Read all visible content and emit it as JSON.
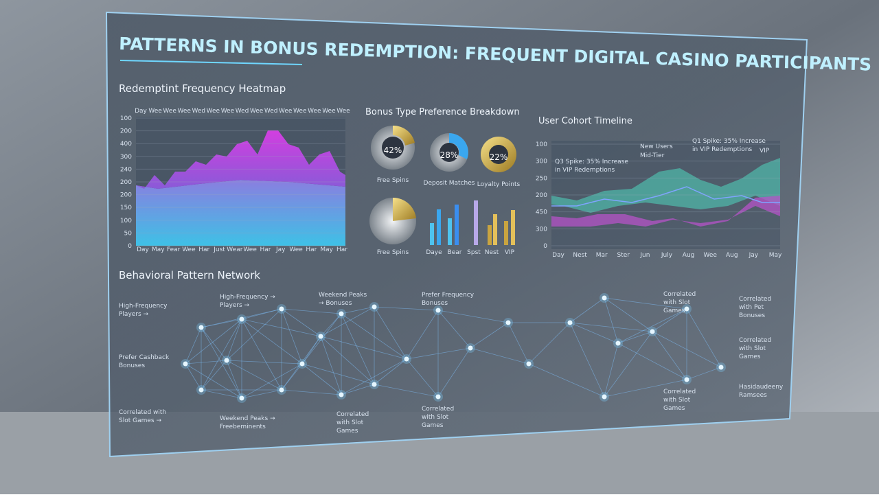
{
  "header": {
    "title": "PATTERNS IN BONUS REDEMPTION: FREQUENT DIGITAL CASINO PARTICIPANTS"
  },
  "heatmap": {
    "title": "Redemptint Frequency Heatmap",
    "y_labels": [
      "100",
      "200",
      "400",
      "300",
      "240",
      "200",
      "200",
      "150",
      "100",
      "50",
      "0"
    ],
    "top_labels": [
      "Day",
      "Wee",
      "Wee",
      "Wee",
      "Wed",
      "Wee",
      "Wee",
      "Wed",
      "Wee",
      "Wed",
      "Wee",
      "Wee",
      "Wee",
      "Wee",
      "Wee"
    ],
    "bottom_labels": [
      "Day",
      "May",
      "Fear",
      "Wee",
      "Har",
      "Just",
      "Wear",
      "Wee",
      "Har",
      "Jay",
      "Wee",
      "Har",
      "May",
      "Har"
    ]
  },
  "breakdown": {
    "title": "Bonus Type Preference Breakdown",
    "donuts": [
      {
        "percent": "42%",
        "label": "Free Spins"
      },
      {
        "percent": "28%",
        "label": "Deposit Matches"
      },
      {
        "percent": "22%",
        "label": "Loyalty Points"
      }
    ],
    "pie_label": "Free Spins",
    "bar_labels": [
      "Daye",
      "Bear",
      "Spst",
      "Nest",
      "VIP"
    ]
  },
  "timeline": {
    "title": "User Cohort Timeline",
    "y_labels": [
      "100",
      "300",
      "250",
      "200",
      "450",
      "300",
      "0"
    ],
    "x_labels": [
      "Day",
      "Nest",
      "Mar",
      "Ster",
      "Jun",
      "July",
      "Aug",
      "Wee",
      "Aug",
      "Jay",
      "May"
    ],
    "annotations": [
      "Q3 Spike: 35% Increase in VIP Redemptions",
      "New Users",
      "Mid-Tier",
      "Q1 Spike: 35% Increase in VIP Redemptions",
      "VIP"
    ]
  },
  "network": {
    "title": "Behavioral Pattern Network",
    "labels": [
      "High-Frequency Players →",
      "High-Frequency → Players →",
      "Weekend Peaks → Bonuses",
      "Prefer Frequency Bonuses",
      "Prefer Cashback Bonuses",
      "Correlated with Slot Games →",
      "Weekend Peaks → Freebeminents",
      "Correlated with Slot Games",
      "Correlated with Slot Games",
      "Correlated with Slot Games",
      "Correlated with Pet Bonuses",
      "Correlated with Slot Games",
      "Hasidaudeeny Ramsees",
      "Correlated with Slot Games"
    ]
  }
}
